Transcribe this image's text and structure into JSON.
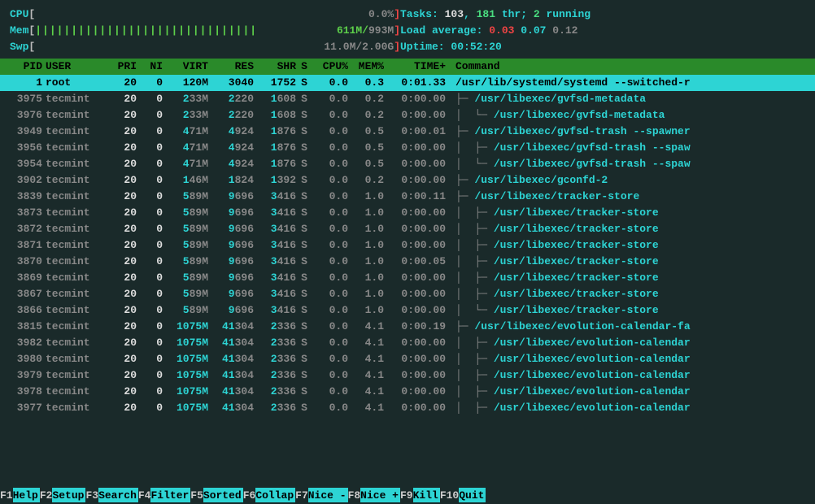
{
  "meters": {
    "cpu_label": "CPU",
    "cpu_pct": "0.0%",
    "mem_label": "Mem",
    "mem_text": "611M/993M",
    "mem_tick_count": 31,
    "swp_label": "Swp",
    "swp_text": "11.0M/2.00G",
    "bracket_open": "[",
    "bracket_close": "]"
  },
  "summary": {
    "tasks_label": "Tasks: ",
    "tasks_count": "103",
    "tasks_sep": ", ",
    "thr_count": "181",
    "thr_label": " thr; ",
    "running_count": "2",
    "running_label": " running",
    "load_label": "Load average: ",
    "load1": "0.03",
    "load5": "0.07",
    "load15": "0.12",
    "uptime_label": "Uptime: ",
    "uptime_val": "00:52:20"
  },
  "columns": {
    "pid": "PID",
    "user": "USER",
    "pri": "PRI",
    "ni": "NI",
    "virt": "VIRT",
    "res": "RES",
    "shr": "SHR",
    "s": "S",
    "cpu": "CPU%",
    "mem": "MEM%",
    "time": "TIME+",
    "cmd": "Command"
  },
  "processes": [
    {
      "pid": "1",
      "user": "root",
      "pri": "20",
      "ni": "0",
      "virt": "120M",
      "res": "3040",
      "shr": "1752",
      "s": "S",
      "cpu": "0.0",
      "mem": "0.3",
      "time": "0:01.33",
      "cmd": "/usr/lib/systemd/systemd --switched-r",
      "depth": 0,
      "branch": "",
      "selected": true
    },
    {
      "pid": "3975",
      "user": "tecmint",
      "pri": "20",
      "ni": "0",
      "virt": "233M",
      "res": "2220",
      "shr": "1608",
      "s": "S",
      "cpu": "0.0",
      "mem": "0.2",
      "time": "0:00.00",
      "cmd": "/usr/libexec/gvfsd-metadata",
      "depth": 1,
      "branch": "├─ "
    },
    {
      "pid": "3976",
      "user": "tecmint",
      "pri": "20",
      "ni": "0",
      "virt": "233M",
      "res": "2220",
      "shr": "1608",
      "s": "S",
      "cpu": "0.0",
      "mem": "0.2",
      "time": "0:00.00",
      "cmd": "/usr/libexec/gvfsd-metadata",
      "depth": 2,
      "branch": "│  └─ "
    },
    {
      "pid": "3949",
      "user": "tecmint",
      "pri": "20",
      "ni": "0",
      "virt": "471M",
      "res": "4924",
      "shr": "1876",
      "s": "S",
      "cpu": "0.0",
      "mem": "0.5",
      "time": "0:00.01",
      "cmd": "/usr/libexec/gvfsd-trash --spawner",
      "depth": 1,
      "branch": "├─ "
    },
    {
      "pid": "3956",
      "user": "tecmint",
      "pri": "20",
      "ni": "0",
      "virt": "471M",
      "res": "4924",
      "shr": "1876",
      "s": "S",
      "cpu": "0.0",
      "mem": "0.5",
      "time": "0:00.00",
      "cmd": "/usr/libexec/gvfsd-trash --spaw",
      "depth": 2,
      "branch": "│  ├─ "
    },
    {
      "pid": "3954",
      "user": "tecmint",
      "pri": "20",
      "ni": "0",
      "virt": "471M",
      "res": "4924",
      "shr": "1876",
      "s": "S",
      "cpu": "0.0",
      "mem": "0.5",
      "time": "0:00.00",
      "cmd": "/usr/libexec/gvfsd-trash --spaw",
      "depth": 2,
      "branch": "│  └─ "
    },
    {
      "pid": "3902",
      "user": "tecmint",
      "pri": "20",
      "ni": "0",
      "virt": "146M",
      "res": "1824",
      "shr": "1392",
      "s": "S",
      "cpu": "0.0",
      "mem": "0.2",
      "time": "0:00.00",
      "cmd": "/usr/libexec/gconfd-2",
      "depth": 1,
      "branch": "├─ "
    },
    {
      "pid": "3839",
      "user": "tecmint",
      "pri": "20",
      "ni": "0",
      "virt": "589M",
      "res": "9696",
      "shr": "3416",
      "s": "S",
      "cpu": "0.0",
      "mem": "1.0",
      "time": "0:00.11",
      "cmd": "/usr/libexec/tracker-store",
      "depth": 1,
      "branch": "├─ "
    },
    {
      "pid": "3873",
      "user": "tecmint",
      "pri": "20",
      "ni": "0",
      "virt": "589M",
      "res": "9696",
      "shr": "3416",
      "s": "S",
      "cpu": "0.0",
      "mem": "1.0",
      "time": "0:00.00",
      "cmd": "/usr/libexec/tracker-store",
      "depth": 2,
      "branch": "│  ├─ "
    },
    {
      "pid": "3872",
      "user": "tecmint",
      "pri": "20",
      "ni": "0",
      "virt": "589M",
      "res": "9696",
      "shr": "3416",
      "s": "S",
      "cpu": "0.0",
      "mem": "1.0",
      "time": "0:00.00",
      "cmd": "/usr/libexec/tracker-store",
      "depth": 2,
      "branch": "│  ├─ "
    },
    {
      "pid": "3871",
      "user": "tecmint",
      "pri": "20",
      "ni": "0",
      "virt": "589M",
      "res": "9696",
      "shr": "3416",
      "s": "S",
      "cpu": "0.0",
      "mem": "1.0",
      "time": "0:00.00",
      "cmd": "/usr/libexec/tracker-store",
      "depth": 2,
      "branch": "│  ├─ "
    },
    {
      "pid": "3870",
      "user": "tecmint",
      "pri": "20",
      "ni": "0",
      "virt": "589M",
      "res": "9696",
      "shr": "3416",
      "s": "S",
      "cpu": "0.0",
      "mem": "1.0",
      "time": "0:00.05",
      "cmd": "/usr/libexec/tracker-store",
      "depth": 2,
      "branch": "│  ├─ "
    },
    {
      "pid": "3869",
      "user": "tecmint",
      "pri": "20",
      "ni": "0",
      "virt": "589M",
      "res": "9696",
      "shr": "3416",
      "s": "S",
      "cpu": "0.0",
      "mem": "1.0",
      "time": "0:00.00",
      "cmd": "/usr/libexec/tracker-store",
      "depth": 2,
      "branch": "│  ├─ "
    },
    {
      "pid": "3867",
      "user": "tecmint",
      "pri": "20",
      "ni": "0",
      "virt": "589M",
      "res": "9696",
      "shr": "3416",
      "s": "S",
      "cpu": "0.0",
      "mem": "1.0",
      "time": "0:00.00",
      "cmd": "/usr/libexec/tracker-store",
      "depth": 2,
      "branch": "│  ├─ "
    },
    {
      "pid": "3866",
      "user": "tecmint",
      "pri": "20",
      "ni": "0",
      "virt": "589M",
      "res": "9696",
      "shr": "3416",
      "s": "S",
      "cpu": "0.0",
      "mem": "1.0",
      "time": "0:00.00",
      "cmd": "/usr/libexec/tracker-store",
      "depth": 2,
      "branch": "│  └─ "
    },
    {
      "pid": "3815",
      "user": "tecmint",
      "pri": "20",
      "ni": "0",
      "virt": "1075M",
      "res": "41304",
      "shr": "2336",
      "s": "S",
      "cpu": "0.0",
      "mem": "4.1",
      "time": "0:00.19",
      "cmd": "/usr/libexec/evolution-calendar-fa",
      "depth": 1,
      "branch": "├─ "
    },
    {
      "pid": "3982",
      "user": "tecmint",
      "pri": "20",
      "ni": "0",
      "virt": "1075M",
      "res": "41304",
      "shr": "2336",
      "s": "S",
      "cpu": "0.0",
      "mem": "4.1",
      "time": "0:00.00",
      "cmd": "/usr/libexec/evolution-calendar",
      "depth": 2,
      "branch": "│  ├─ "
    },
    {
      "pid": "3980",
      "user": "tecmint",
      "pri": "20",
      "ni": "0",
      "virt": "1075M",
      "res": "41304",
      "shr": "2336",
      "s": "S",
      "cpu": "0.0",
      "mem": "4.1",
      "time": "0:00.00",
      "cmd": "/usr/libexec/evolution-calendar",
      "depth": 2,
      "branch": "│  ├─ "
    },
    {
      "pid": "3979",
      "user": "tecmint",
      "pri": "20",
      "ni": "0",
      "virt": "1075M",
      "res": "41304",
      "shr": "2336",
      "s": "S",
      "cpu": "0.0",
      "mem": "4.1",
      "time": "0:00.00",
      "cmd": "/usr/libexec/evolution-calendar",
      "depth": 2,
      "branch": "│  ├─ "
    },
    {
      "pid": "3978",
      "user": "tecmint",
      "pri": "20",
      "ni": "0",
      "virt": "1075M",
      "res": "41304",
      "shr": "2336",
      "s": "S",
      "cpu": "0.0",
      "mem": "4.1",
      "time": "0:00.00",
      "cmd": "/usr/libexec/evolution-calendar",
      "depth": 2,
      "branch": "│  ├─ "
    },
    {
      "pid": "3977",
      "user": "tecmint",
      "pri": "20",
      "ni": "0",
      "virt": "1075M",
      "res": "41304",
      "shr": "2336",
      "s": "S",
      "cpu": "0.0",
      "mem": "4.1",
      "time": "0:00.00",
      "cmd": "/usr/libexec/evolution-calendar",
      "depth": 2,
      "branch": "│  ├─ "
    }
  ],
  "footer": [
    {
      "key": "F1",
      "label": "Help  "
    },
    {
      "key": "F2",
      "label": "Setup "
    },
    {
      "key": "F3",
      "label": "Search"
    },
    {
      "key": "F4",
      "label": "Filter"
    },
    {
      "key": "F5",
      "label": "Sorted"
    },
    {
      "key": "F6",
      "label": "Collap"
    },
    {
      "key": "F7",
      "label": "Nice -"
    },
    {
      "key": "F8",
      "label": "Nice +"
    },
    {
      "key": "F9",
      "label": "Kill  "
    },
    {
      "key": "F10",
      "label": "Quit  "
    }
  ],
  "colors": {
    "bg": "#1a2a2a",
    "cyan": "#2dd4d4",
    "gray": "#888888",
    "white": "#dddddd",
    "green_header": "#2a8a2a",
    "mem_green": "#5dd04a",
    "red": "#ef4444"
  }
}
